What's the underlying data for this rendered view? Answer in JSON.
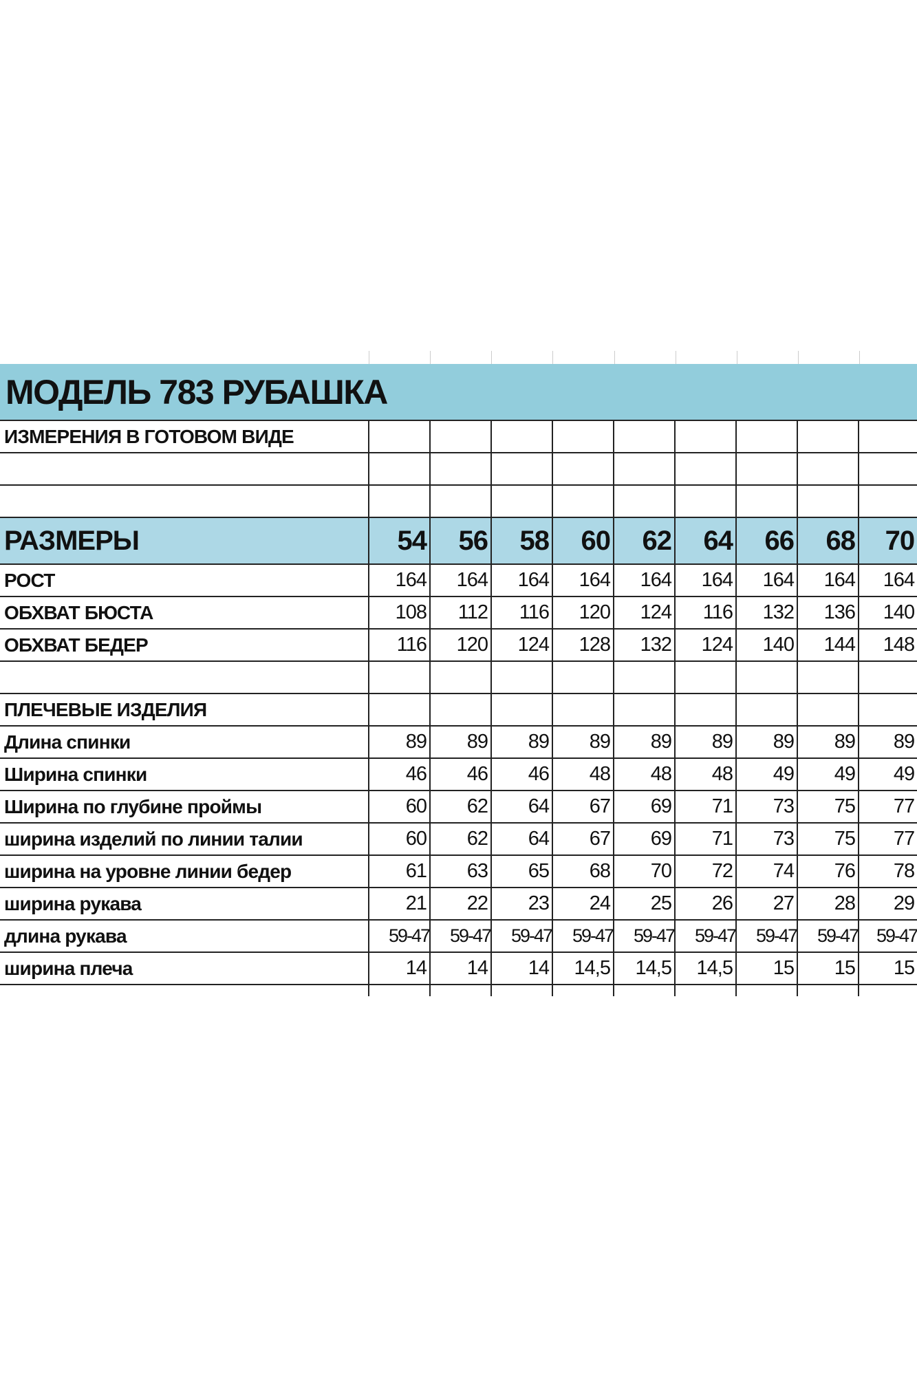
{
  "title": "МОДЕЛЬ 783 РУБАШКА",
  "subtitle": "ИЗМЕРЕНИЯ В ГОТОВОМ ВИДЕ",
  "sizes_label": "РАЗМЕРЫ",
  "sizes": [
    "54",
    "56",
    "58",
    "60",
    "62",
    "64",
    "66",
    "68",
    "70"
  ],
  "colors": {
    "header_band": "#92cddc",
    "sizes_band": "#add8e6"
  },
  "body_rows": [
    {
      "label": "РОСТ",
      "values": [
        "164",
        "164",
        "164",
        "164",
        "164",
        "164",
        "164",
        "164",
        "164"
      ]
    },
    {
      "label": "ОБХВАТ БЮСТА",
      "values": [
        "108",
        "112",
        "116",
        "120",
        "124",
        "116",
        "132",
        "136",
        "140"
      ]
    },
    {
      "label": "ОБХВАТ БЕДЕР",
      "values": [
        "116",
        "120",
        "124",
        "128",
        "132",
        "124",
        "140",
        "144",
        "148"
      ]
    }
  ],
  "section_label": "ПЛЕЧЕВЫЕ ИЗДЕЛИЯ",
  "garment_rows": [
    {
      "label": "Длина спинки",
      "values": [
        "89",
        "89",
        "89",
        "89",
        "89",
        "89",
        "89",
        "89",
        "89"
      ]
    },
    {
      "label": "Ширина спинки",
      "values": [
        "46",
        "46",
        "46",
        "48",
        "48",
        "48",
        "49",
        "49",
        "49"
      ]
    },
    {
      "label": "Ширина по глубине проймы",
      "values": [
        "60",
        "62",
        "64",
        "67",
        "69",
        "71",
        "73",
        "75",
        "77"
      ]
    },
    {
      "label": "ширина изделий по линии талии",
      "values": [
        "60",
        "62",
        "64",
        "67",
        "69",
        "71",
        "73",
        "75",
        "77"
      ]
    },
    {
      "label": "ширина на уровне линии бедер",
      "values": [
        "61",
        "63",
        "65",
        "68",
        "70",
        "72",
        "74",
        "76",
        "78"
      ]
    },
    {
      "label": "ширина рукава",
      "values": [
        "21",
        "22",
        "23",
        "24",
        "25",
        "26",
        "27",
        "28",
        "29"
      ]
    },
    {
      "label": "длина рукава",
      "values": [
        "59-47",
        "59-47",
        "59-47",
        "59-47",
        "59-47",
        "59-47",
        "59-47",
        "59-47",
        "59-47"
      ]
    },
    {
      "label": "ширина плеча",
      "values": [
        "14",
        "14",
        "14",
        "14,5",
        "14,5",
        "14,5",
        "15",
        "15",
        "15"
      ]
    }
  ]
}
